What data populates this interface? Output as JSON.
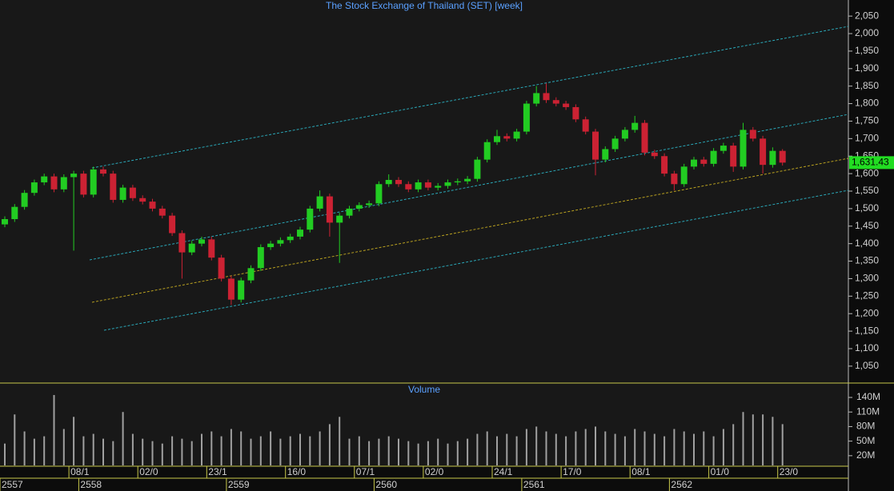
{
  "chart_data": {
    "type": "candlestick",
    "title": "The Stock Exchange of Thailand (SET) [week]",
    "open": [
      1455,
      1470,
      1505,
      1545,
      1575,
      1592,
      1555,
      1590,
      1600,
      1540,
      1612,
      1600,
      1525,
      1560,
      1530,
      1520,
      1500,
      1480,
      1430,
      1375,
      1400,
      1412,
      1360,
      1300,
      1240,
      1295,
      1330,
      1390,
      1400,
      1410,
      1420,
      1440,
      1500,
      1535,
      1460,
      1480,
      1500,
      1510,
      1515,
      1570,
      1582,
      1570,
      1555,
      1575,
      1560,
      1565,
      1575,
      1578,
      1585,
      1640,
      1690,
      1707,
      1700,
      1720,
      1800,
      1830,
      1810,
      1800,
      1790,
      1755,
      1720,
      1640,
      1670,
      1700,
      1725,
      1745,
      1660,
      1650,
      1600,
      1570,
      1620,
      1640,
      1628,
      1665,
      1680,
      1620,
      1725,
      1700,
      1625,
      1665
    ],
    "high": [
      1478,
      1513,
      1553,
      1583,
      1600,
      1600,
      1598,
      1608,
      1608,
      1620,
      1620,
      1608,
      1568,
      1568,
      1538,
      1528,
      1508,
      1488,
      1438,
      1408,
      1420,
      1420,
      1368,
      1308,
      1303,
      1338,
      1398,
      1408,
      1418,
      1428,
      1448,
      1508,
      1552,
      1543,
      1488,
      1508,
      1518,
      1523,
      1578,
      1598,
      1590,
      1578,
      1583,
      1583,
      1573,
      1583,
      1586,
      1593,
      1648,
      1698,
      1725,
      1715,
      1728,
      1808,
      1850,
      1858,
      1818,
      1808,
      1798,
      1763,
      1728,
      1678,
      1708,
      1733,
      1765,
      1753,
      1668,
      1658,
      1608,
      1628,
      1648,
      1648,
      1673,
      1688,
      1688,
      1745,
      1733,
      1708,
      1675,
      1670
    ],
    "low": [
      1447,
      1462,
      1497,
      1537,
      1567,
      1547,
      1547,
      1380,
      1532,
      1532,
      1592,
      1517,
      1517,
      1522,
      1512,
      1492,
      1472,
      1422,
      1300,
      1367,
      1392,
      1352,
      1292,
      1225,
      1232,
      1287,
      1322,
      1382,
      1392,
      1402,
      1412,
      1432,
      1492,
      1420,
      1345,
      1472,
      1492,
      1502,
      1507,
      1562,
      1562,
      1547,
      1547,
      1552,
      1552,
      1557,
      1567,
      1570,
      1577,
      1632,
      1682,
      1692,
      1692,
      1712,
      1792,
      1802,
      1792,
      1782,
      1747,
      1712,
      1595,
      1632,
      1662,
      1692,
      1717,
      1652,
      1642,
      1592,
      1552,
      1562,
      1612,
      1620,
      1620,
      1657,
      1605,
      1612,
      1692,
      1600,
      1617,
      1623
    ],
    "close": [
      1470,
      1505,
      1545,
      1575,
      1592,
      1555,
      1590,
      1600,
      1540,
      1612,
      1600,
      1525,
      1560,
      1530,
      1520,
      1500,
      1480,
      1430,
      1375,
      1400,
      1412,
      1360,
      1300,
      1240,
      1295,
      1330,
      1390,
      1400,
      1410,
      1420,
      1440,
      1500,
      1535,
      1460,
      1480,
      1500,
      1510,
      1515,
      1570,
      1582,
      1570,
      1555,
      1575,
      1560,
      1565,
      1575,
      1578,
      1585,
      1640,
      1690,
      1707,
      1700,
      1720,
      1800,
      1830,
      1810,
      1800,
      1790,
      1755,
      1720,
      1640,
      1670,
      1700,
      1725,
      1745,
      1660,
      1650,
      1600,
      1570,
      1620,
      1640,
      1628,
      1665,
      1680,
      1620,
      1725,
      1700,
      1625,
      1665,
      1631.43
    ],
    "last_price_label": "1,631.43",
    "up_color": "#22cc22",
    "down_color": "#cc2233",
    "ylim": [
      1004,
      2096
    ],
    "yticks": [
      {
        "value": 1050,
        "label": "1,050"
      },
      {
        "value": 1100,
        "label": "1,100"
      },
      {
        "value": 1150,
        "label": "1,150"
      },
      {
        "value": 1200,
        "label": "1,200"
      },
      {
        "value": 1250,
        "label": "1,250"
      },
      {
        "value": 1300,
        "label": "1,300"
      },
      {
        "value": 1350,
        "label": "1,350"
      },
      {
        "value": 1400,
        "label": "1,400"
      },
      {
        "value": 1450,
        "label": "1,450"
      },
      {
        "value": 1500,
        "label": "1,500"
      },
      {
        "value": 1550,
        "label": "1,550"
      },
      {
        "value": 1600,
        "label": "1,600"
      },
      {
        "value": 1650,
        "label": "1,650"
      },
      {
        "value": 1700,
        "label": "1,700"
      },
      {
        "value": 1750,
        "label": "1,750"
      },
      {
        "value": 1800,
        "label": "1,800"
      },
      {
        "value": 1850,
        "label": "1,850"
      },
      {
        "value": 1900,
        "label": "1,900"
      },
      {
        "value": 1950,
        "label": "1,950"
      },
      {
        "value": 2000,
        "label": "2,000"
      },
      {
        "value": 2050,
        "label": "2,050"
      }
    ],
    "volume_title": "Volume",
    "volume": [
      45,
      105,
      70,
      55,
      60,
      145,
      75,
      100,
      60,
      65,
      55,
      50,
      110,
      65,
      55,
      50,
      45,
      60,
      55,
      50,
      65,
      70,
      60,
      75,
      70,
      55,
      60,
      70,
      55,
      60,
      65,
      60,
      70,
      85,
      100,
      55,
      60,
      50,
      55,
      60,
      55,
      50,
      45,
      50,
      55,
      45,
      50,
      55,
      65,
      70,
      60,
      65,
      60,
      75,
      80,
      70,
      65,
      60,
      70,
      75,
      80,
      70,
      65,
      60,
      75,
      70,
      65,
      60,
      75,
      70,
      65,
      70,
      60,
      75,
      85,
      110,
      105,
      105,
      100,
      85
    ],
    "volume_color": "#a0a0a0",
    "volume_ylim": [
      0,
      168
    ],
    "volume_yticks": [
      {
        "value": 20,
        "label": "20M"
      },
      {
        "value": 50,
        "label": "50M"
      },
      {
        "value": 80,
        "label": "80M"
      },
      {
        "value": 110,
        "label": "110M"
      },
      {
        "value": 140,
        "label": "140M"
      }
    ],
    "xticks": [
      {
        "value": 7,
        "label": "08/1"
      },
      {
        "value": 14,
        "label": "02/0"
      },
      {
        "value": 21,
        "label": "23/1"
      },
      {
        "value": 29,
        "label": "16/0"
      },
      {
        "value": 36,
        "label": "07/1"
      },
      {
        "value": 43,
        "label": "02/0"
      },
      {
        "value": 50,
        "label": "24/1"
      },
      {
        "value": 57,
        "label": "17/0"
      },
      {
        "value": 64,
        "label": "08/1"
      },
      {
        "value": 72,
        "label": "01/0"
      },
      {
        "value": 79,
        "label": "23/0"
      }
    ],
    "years": [
      {
        "value": 0,
        "label": "2557"
      },
      {
        "value": 8,
        "label": "2558"
      },
      {
        "value": 23,
        "label": "2559"
      },
      {
        "value": 38,
        "label": "2560"
      },
      {
        "value": 53,
        "label": "2561"
      },
      {
        "value": 68,
        "label": "2562"
      }
    ]
  }
}
